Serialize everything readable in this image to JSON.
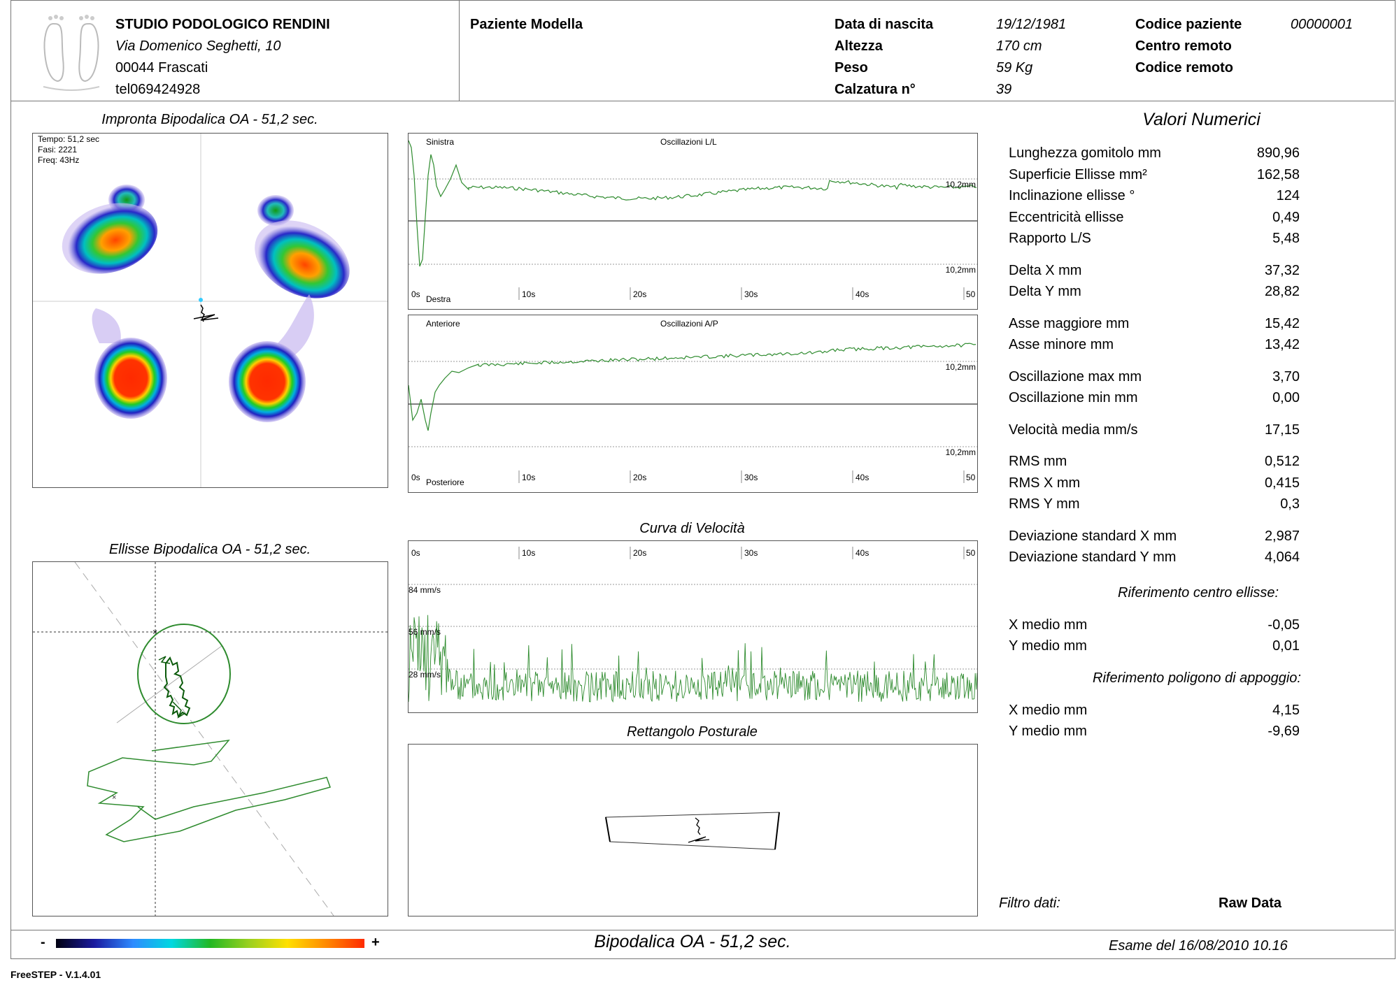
{
  "header": {
    "studio_name": "STUDIO PODOLOGICO RENDINI",
    "address_line1": "Via Domenico Seghetti, 10",
    "address_line2": "00044 Frascati",
    "phone": "tel069424928",
    "patient_name": "Paziente Modella",
    "fields": [
      {
        "label": "Data di nascita",
        "value": "19/12/1981"
      },
      {
        "label": "Altezza",
        "value": "170 cm"
      },
      {
        "label": "Peso",
        "value": "59 Kg"
      },
      {
        "label": "Calzatura n°",
        "value": "39"
      }
    ],
    "right_fields": [
      {
        "label": "Codice paziente",
        "value": "00000001"
      },
      {
        "label": "Centro remoto",
        "value": ""
      },
      {
        "label": "Codice remoto",
        "value": ""
      }
    ]
  },
  "footprint": {
    "title": "Impronta Bipodalica OA - 51,2 sec.",
    "info_time": "Tempo: 51,2 sec",
    "info_phases": "Fasi: 2221",
    "info_freq": "Freq: 43Hz"
  },
  "ellipse_panel": {
    "title": "Ellisse Bipodalica OA - 51,2 sec."
  },
  "oscillation_ll": {
    "title": "Oscillazioni L/L",
    "top_label": "Sinistra",
    "bottom_label": "Destra",
    "scale_top": "10,2mm",
    "scale_bottom": "10,2mm",
    "time_ticks": [
      "0s",
      "10s",
      "20s",
      "30s",
      "40s",
      "50"
    ]
  },
  "oscillation_ap": {
    "title": "Oscillazioni A/P",
    "top_label": "Anteriore",
    "bottom_label": "Posteriore",
    "scale_top": "10,2mm",
    "scale_bottom": "10,2mm",
    "time_ticks": [
      "0s",
      "10s",
      "20s",
      "30s",
      "40s",
      "50"
    ]
  },
  "velocity": {
    "title": "Curva di Velocità",
    "time_ticks": [
      "0s",
      "10s",
      "20s",
      "30s",
      "40s",
      "50"
    ],
    "levels": [
      "84 mm/s",
      "56 mm/s",
      "28 mm/s"
    ]
  },
  "rectangle": {
    "title": "Rettangolo Posturale"
  },
  "numeric": {
    "title": "Valori Numerici",
    "groups": [
      [
        {
          "label": "Lunghezza gomitolo mm",
          "value": "890,96"
        },
        {
          "label": "Superficie Ellisse mm²",
          "value": "162,58"
        },
        {
          "label": "Inclinazione ellisse °",
          "value": "124"
        },
        {
          "label": "Eccentricità ellisse",
          "value": "0,49"
        },
        {
          "label": "Rapporto L/S",
          "value": "5,48"
        }
      ],
      [
        {
          "label": "Delta X mm",
          "value": "37,32"
        },
        {
          "label": "Delta Y mm",
          "value": "28,82"
        }
      ],
      [
        {
          "label": "Asse maggiore mm",
          "value": "15,42"
        },
        {
          "label": "Asse minore mm",
          "value": "13,42"
        }
      ],
      [
        {
          "label": "Oscillazione max mm",
          "value": "3,70"
        },
        {
          "label": "Oscillazione min mm",
          "value": "0,00"
        }
      ],
      [
        {
          "label": "Velocità media mm/s",
          "value": "17,15"
        }
      ],
      [
        {
          "label": "RMS mm",
          "value": "0,512"
        },
        {
          "label": "RMS X mm",
          "value": "0,415"
        },
        {
          "label": "RMS Y mm",
          "value": "0,3"
        }
      ],
      [
        {
          "label": "Deviazione standard X mm",
          "value": "2,987"
        },
        {
          "label": "Deviazione standard Y mm",
          "value": "4,064"
        }
      ]
    ],
    "ref_ellipse_title": "Riferimento centro ellisse:",
    "ref_ellipse": [
      {
        "label": "X medio mm",
        "value": "-0,05"
      },
      {
        "label": "Y medio mm",
        "value": "0,01"
      }
    ],
    "ref_polygon_title": "Riferimento poligono di appoggio:",
    "ref_polygon": [
      {
        "label": "X medio mm",
        "value": "4,15"
      },
      {
        "label": "Y medio mm",
        "value": "-9,69"
      }
    ],
    "filter_label": "Filtro dati:",
    "filter_value": "Raw Data"
  },
  "footer": {
    "scale_min": "-",
    "scale_max": "+",
    "center_title": "Bipodalica OA - 51,2 sec.",
    "exam_date": "Esame del 16/08/2010 10.16",
    "software": "FreeSTEP - V.1.4.01"
  },
  "colors": {
    "trace_green": "#2e8b2e",
    "border": "#777777"
  }
}
